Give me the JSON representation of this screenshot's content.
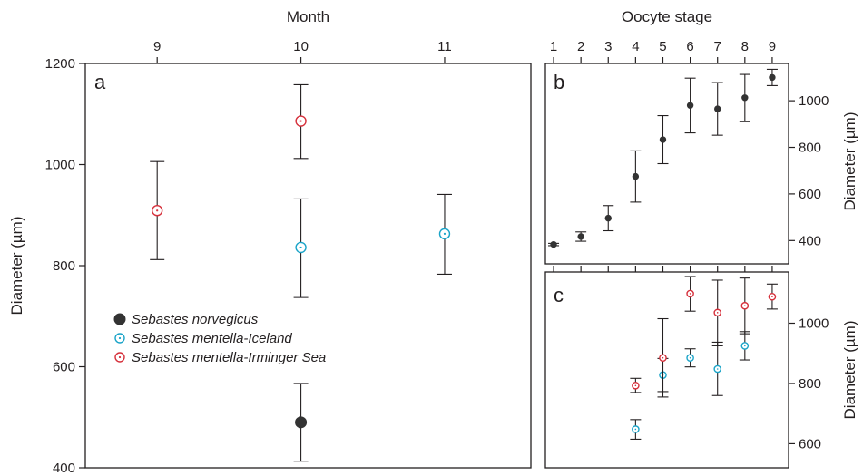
{
  "colors": {
    "norvegicus": "#333333",
    "iceland": "#1ba4c8",
    "irminger": "#d6313c",
    "axis": "#231f20"
  },
  "legend": [
    {
      "key": "norvegicus",
      "label": "Sebastes norvegicus",
      "marker": "filled-circle"
    },
    {
      "key": "iceland",
      "label": "Sebastes mentella-Iceland",
      "marker": "open-circle-dot"
    },
    {
      "key": "irminger",
      "label": "Sebastes mentella-Irminger Sea",
      "marker": "open-circle-dot"
    }
  ],
  "chart_data": [
    {
      "id": "a",
      "panel_label": "a",
      "type": "scatter",
      "xlabel": "Month",
      "xlabel_position": "top",
      "ylabel": "Diameter (µm)",
      "ylabel_position": "left",
      "xlim": [
        8.5,
        11.6
      ],
      "ylim": [
        400,
        1200
      ],
      "xticks": [
        9,
        10,
        11
      ],
      "yticks": [
        400,
        600,
        800,
        1000,
        1200
      ],
      "series": [
        {
          "name": "Sebastes norvegicus",
          "key": "norvegicus",
          "points": [
            {
              "x": 10,
              "y": 490,
              "lo": 413,
              "hi": 567
            }
          ]
        },
        {
          "name": "Sebastes mentella-Iceland",
          "key": "iceland",
          "points": [
            {
              "x": 10,
              "y": 836,
              "lo": 737,
              "hi": 932
            },
            {
              "x": 11,
              "y": 863,
              "lo": 783,
              "hi": 941
            }
          ]
        },
        {
          "name": "Sebastes mentella-Irminger Sea",
          "key": "irminger",
          "points": [
            {
              "x": 9,
              "y": 909,
              "lo": 812,
              "hi": 1006
            },
            {
              "x": 10,
              "y": 1086,
              "lo": 1012,
              "hi": 1158
            }
          ]
        }
      ]
    },
    {
      "id": "b",
      "panel_label": "b",
      "type": "scatter",
      "xlabel": "Oocyte stage",
      "xlabel_position": "top",
      "ylabel": "Diameter (µm)",
      "ylabel_position": "right",
      "xlim": [
        0.7,
        9.6
      ],
      "ylim": [
        300,
        1160
      ],
      "xticks": [
        1,
        2,
        3,
        4,
        5,
        6,
        7,
        8,
        9
      ],
      "yticks": [
        400,
        600,
        800,
        1000
      ],
      "series": [
        {
          "key": "norvegicus",
          "points": [
            {
              "x": 1,
              "y": 383,
              "lo": 378,
              "hi": 388
            },
            {
              "x": 2,
              "y": 417,
              "lo": 397,
              "hi": 437
            },
            {
              "x": 3,
              "y": 496,
              "lo": 442,
              "hi": 550
            },
            {
              "x": 4,
              "y": 675,
              "lo": 565,
              "hi": 785
            },
            {
              "x": 5,
              "y": 833,
              "lo": 730,
              "hi": 936
            },
            {
              "x": 6,
              "y": 980,
              "lo": 862,
              "hi": 1097
            },
            {
              "x": 7,
              "y": 965,
              "lo": 852,
              "hi": 1078
            },
            {
              "x": 8,
              "y": 1013,
              "lo": 910,
              "hi": 1113
            },
            {
              "x": 9,
              "y": 1100,
              "lo": 1065,
              "hi": 1135
            }
          ]
        }
      ]
    },
    {
      "id": "c",
      "panel_label": "c",
      "type": "scatter",
      "xlabel": "",
      "ylabel": "Diameter (µm)",
      "ylabel_position": "right",
      "xlim": [
        0.7,
        9.6
      ],
      "ylim": [
        520,
        1170
      ],
      "xticks": [
        1,
        2,
        3,
        4,
        5,
        6,
        7,
        8,
        9
      ],
      "xtick_labels_shown": false,
      "yticks": [
        600,
        800,
        1000
      ],
      "series": [
        {
          "name": "Sebastes mentella-Iceland",
          "key": "iceland",
          "points": [
            {
              "x": 4,
              "y": 648,
              "lo": 615,
              "hi": 680
            },
            {
              "x": 5,
              "y": 828,
              "lo": 773,
              "hi": 883
            },
            {
              "x": 6,
              "y": 885,
              "lo": 855,
              "hi": 915
            },
            {
              "x": 7,
              "y": 848,
              "lo": 760,
              "hi": 937
            },
            {
              "x": 8,
              "y": 925,
              "lo": 878,
              "hi": 972
            }
          ]
        },
        {
          "name": "Sebastes mentella-Irminger Sea",
          "key": "irminger",
          "points": [
            {
              "x": 4,
              "y": 793,
              "lo": 770,
              "hi": 817
            },
            {
              "x": 5,
              "y": 885,
              "lo": 755,
              "hi": 1015
            },
            {
              "x": 6,
              "y": 1098,
              "lo": 1040,
              "hi": 1155
            },
            {
              "x": 7,
              "y": 1035,
              "lo": 925,
              "hi": 1143
            },
            {
              "x": 8,
              "y": 1058,
              "lo": 965,
              "hi": 1150
            },
            {
              "x": 9,
              "y": 1088,
              "lo": 1047,
              "hi": 1130
            }
          ]
        }
      ]
    }
  ]
}
